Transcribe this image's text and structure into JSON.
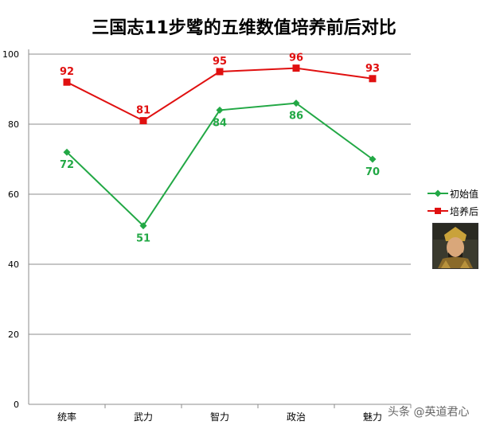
{
  "chart_data": {
    "type": "line",
    "title": "三国志11步骘的五维数值培养前后对比",
    "categories": [
      "统率",
      "武力",
      "智力",
      "政治",
      "魅力"
    ],
    "ylim": [
      0,
      100
    ],
    "yticks": [
      "0",
      "20",
      "40",
      "60",
      "80",
      "100"
    ],
    "grid": true,
    "legend_position": "right",
    "series": [
      {
        "name": "初始值",
        "values": [
          72,
          51,
          84,
          86,
          70
        ],
        "color": "#22a845",
        "marker": "diamond"
      },
      {
        "name": "培养后",
        "values": [
          92,
          81,
          95,
          96,
          93
        ],
        "color": "#e01010",
        "marker": "square"
      }
    ]
  },
  "watermark": "头条 @英道君心"
}
